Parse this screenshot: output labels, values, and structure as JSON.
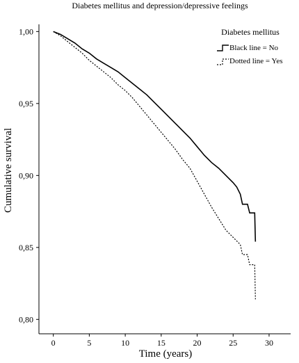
{
  "chart_data": {
    "type": "line",
    "title": "Diabetes mellitus and depression/depressive feelings",
    "xlabel": "Time (years)",
    "ylabel": "Cumulative survival",
    "xlim": [
      -2,
      33
    ],
    "ylim": [
      0.79,
      1.005
    ],
    "x_ticks": [
      "0",
      "5",
      "10",
      "15",
      "20",
      "25",
      "30"
    ],
    "y_ticks": [
      "1,00",
      "0,95",
      "0,90",
      "0,85",
      "0,80"
    ],
    "grid": false,
    "legend": {
      "title": "Diabetes mellitus",
      "position": "top-right",
      "entries": [
        "Black line = No",
        "Dotted line = Yes"
      ]
    },
    "series": [
      {
        "name": "Black line = No",
        "style": "solid",
        "x": [
          0,
          1,
          2,
          3,
          4,
          5,
          6,
          7,
          8,
          9,
          10,
          11,
          12,
          13,
          14,
          15,
          16,
          17,
          18,
          19,
          20,
          20.5,
          21,
          22,
          23,
          24,
          25,
          25.5,
          26,
          26.3,
          27,
          27.3,
          28,
          28.1
        ],
        "y": [
          1.0,
          0.998,
          0.995,
          0.992,
          0.988,
          0.985,
          0.981,
          0.978,
          0.975,
          0.972,
          0.968,
          0.964,
          0.96,
          0.956,
          0.951,
          0.946,
          0.941,
          0.936,
          0.931,
          0.926,
          0.92,
          0.917,
          0.914,
          0.909,
          0.905,
          0.9,
          0.895,
          0.892,
          0.887,
          0.88,
          0.88,
          0.874,
          0.874,
          0.854
        ]
      },
      {
        "name": "Dotted line = Yes",
        "style": "dotted",
        "x": [
          0,
          1,
          2,
          3,
          4,
          5,
          6,
          7,
          8,
          9,
          10,
          11,
          12,
          13,
          14,
          15,
          16,
          17,
          18,
          19,
          20,
          21,
          22,
          23,
          24,
          25,
          26,
          26.3,
          27,
          27.3,
          28,
          28.1
        ],
        "y": [
          1.0,
          0.997,
          0.993,
          0.989,
          0.985,
          0.98,
          0.976,
          0.972,
          0.968,
          0.963,
          0.959,
          0.954,
          0.948,
          0.942,
          0.936,
          0.93,
          0.924,
          0.918,
          0.911,
          0.905,
          0.896,
          0.887,
          0.878,
          0.87,
          0.862,
          0.857,
          0.852,
          0.845,
          0.845,
          0.838,
          0.838,
          0.814
        ]
      }
    ]
  }
}
